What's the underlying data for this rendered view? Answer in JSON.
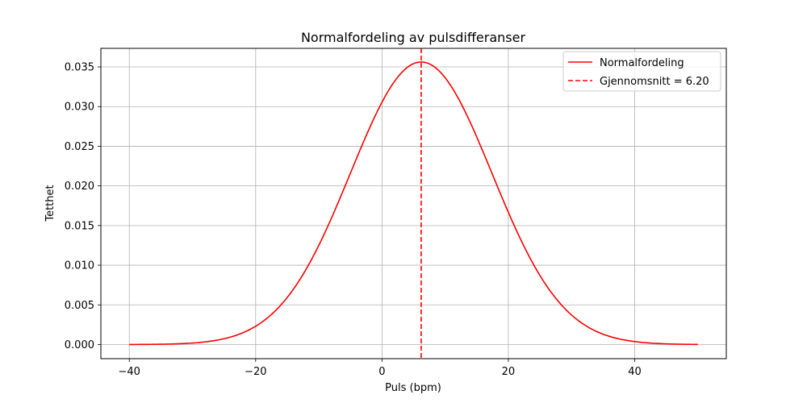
{
  "chart_data": {
    "type": "line",
    "title": "Normalfordeling av pulsdifferanser",
    "xlabel": "Puls (bpm)",
    "ylabel": "Tetthet",
    "xlim": [
      -44.5,
      54.5
    ],
    "ylim": [
      -0.00178,
      0.03734
    ],
    "xticks": [
      -40,
      -20,
      0,
      20,
      40
    ],
    "xtick_labels": [
      "−40",
      "−20",
      "0",
      "20",
      "40"
    ],
    "yticks": [
      0.0,
      0.005,
      0.01,
      0.015,
      0.02,
      0.025,
      0.03,
      0.035
    ],
    "ytick_labels": [
      "0.000",
      "0.005",
      "0.010",
      "0.015",
      "0.020",
      "0.025",
      "0.030",
      "0.035"
    ],
    "grid": true,
    "legend_position": "upper right",
    "curve": {
      "name": "Normalfordeling",
      "color": "#ff0000",
      "distribution": "normal",
      "mean": 6.2,
      "std": 11.2,
      "x_range": [
        -40,
        50
      ]
    },
    "mean_line": {
      "name": "Gjennomsnitt = 6.20",
      "x": 6.2,
      "color": "#ff0000",
      "style": "dashed"
    }
  }
}
